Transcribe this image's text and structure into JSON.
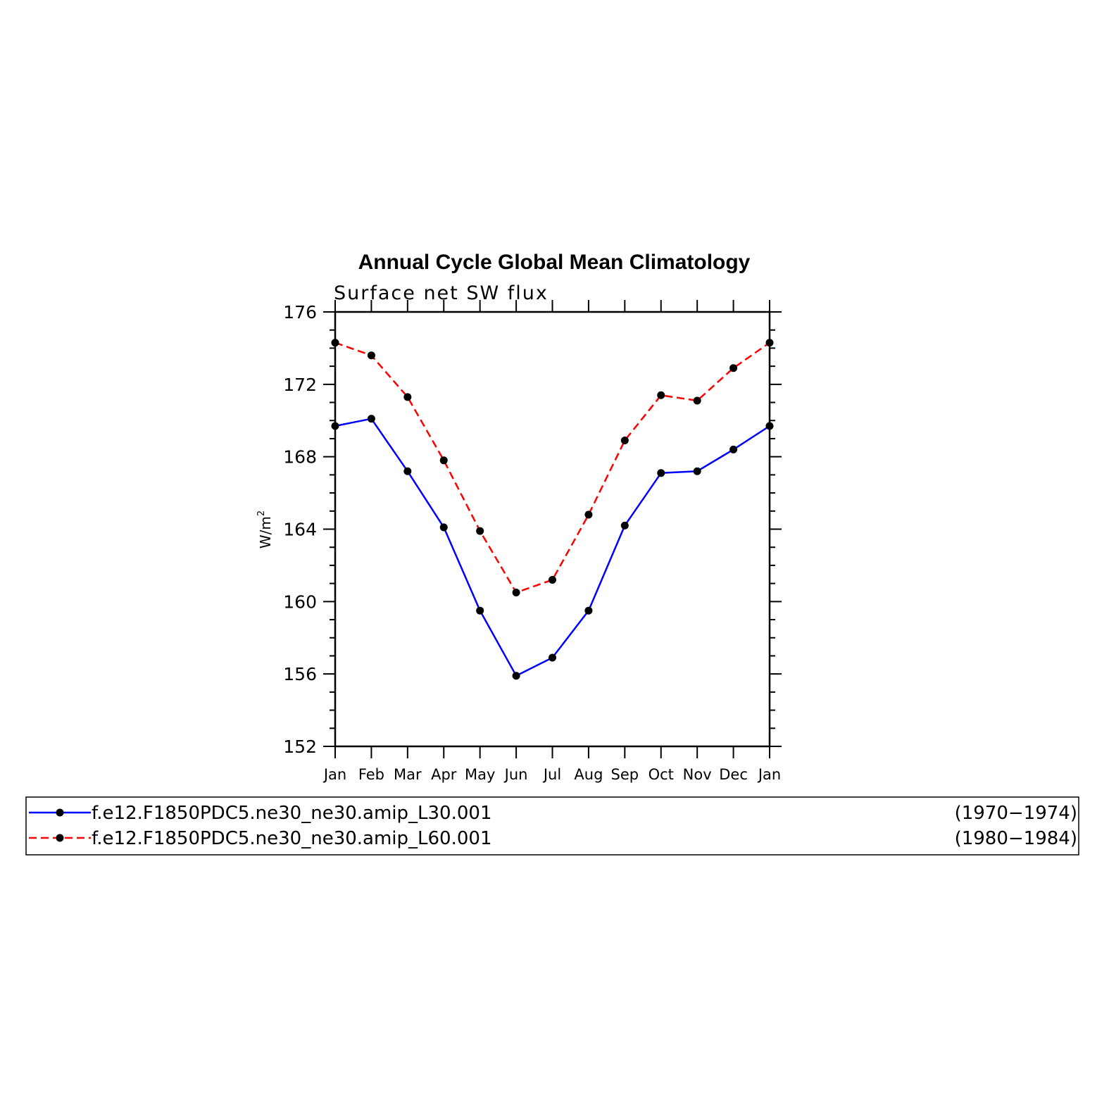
{
  "chart_data": {
    "type": "line",
    "title": "Annual Cycle Global Mean Climatology",
    "subtitle": "Surface net SW flux",
    "ylabel": "W/m",
    "ylabel_superscript": "2",
    "xlabel": "",
    "ylim": [
      152,
      176
    ],
    "yticks": [
      "152",
      "156",
      "160",
      "164",
      "168",
      "172",
      "176"
    ],
    "categories": [
      "Jan",
      "Feb",
      "Mar",
      "Apr",
      "May",
      "Jun",
      "Jul",
      "Aug",
      "Sep",
      "Oct",
      "Nov",
      "Dec",
      "Jan"
    ],
    "grid": false,
    "legend_position": "bottom",
    "series": [
      {
        "name": "f.e12.F1850PDC5.ne30_ne30.amip_L30.001",
        "years": "(1970−1974)",
        "color": "#0000ff",
        "dash": "solid",
        "values": [
          169.7,
          170.1,
          167.2,
          164.1,
          159.5,
          155.9,
          156.9,
          159.5,
          164.2,
          167.1,
          167.2,
          168.4,
          169.7
        ]
      },
      {
        "name": "f.e12.F1850PDC5.ne30_ne30.amip_L60.001",
        "years": "(1980−1984)",
        "color": "#ff0000",
        "dash": "dashed",
        "values": [
          174.3,
          173.6,
          171.3,
          167.8,
          163.9,
          160.5,
          161.2,
          164.8,
          168.9,
          171.4,
          171.1,
          172.9,
          174.3
        ]
      }
    ]
  }
}
